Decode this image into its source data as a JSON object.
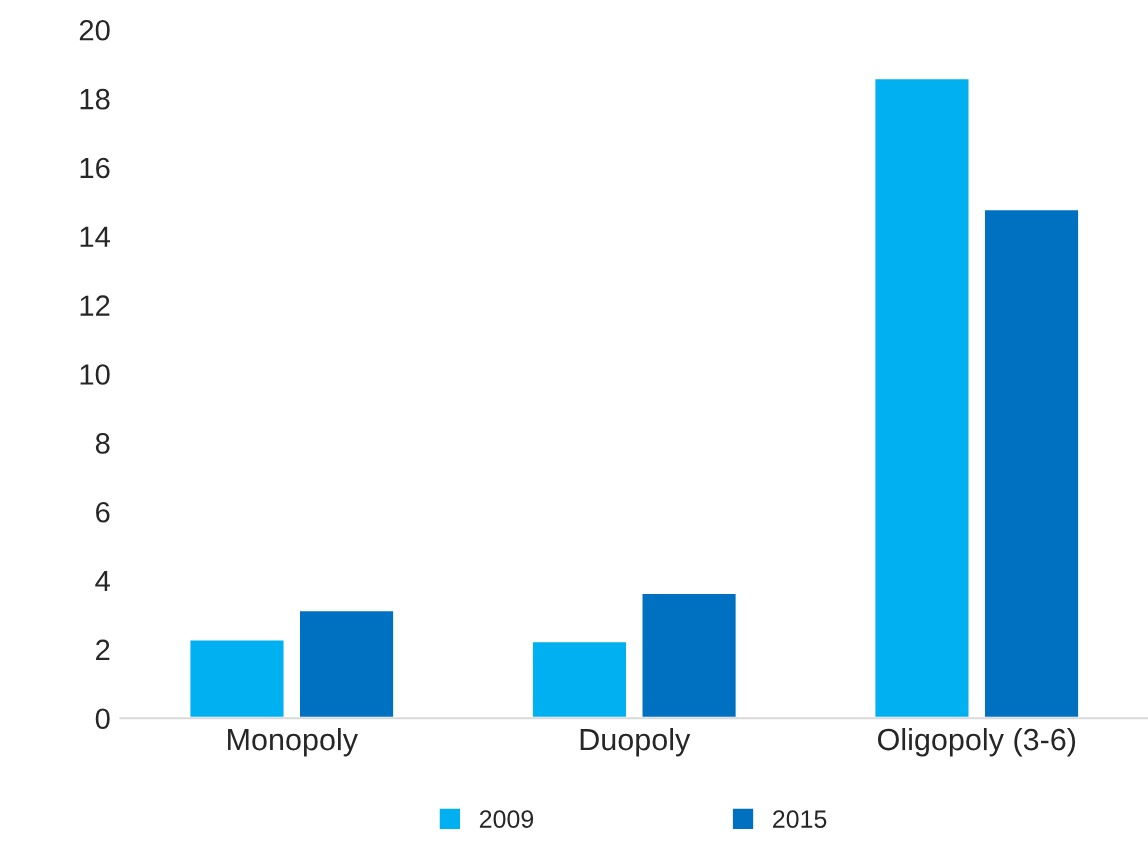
{
  "chart_data": {
    "type": "bar",
    "categories": [
      "Monopoly",
      "Duopoly",
      "Oligopoly (3-6)"
    ],
    "series": [
      {
        "name": "2009",
        "color": "#00b0f0",
        "values": [
          2.3,
          2.25,
          18.6
        ]
      },
      {
        "name": "2015",
        "color": "#0070c0",
        "values": [
          3.15,
          3.65,
          14.8
        ]
      }
    ],
    "ylim": [
      0,
      20
    ],
    "yticks": [
      0,
      2,
      4,
      6,
      8,
      10,
      12,
      14,
      16,
      18,
      20
    ],
    "grid": false,
    "legend": "bottom"
  }
}
